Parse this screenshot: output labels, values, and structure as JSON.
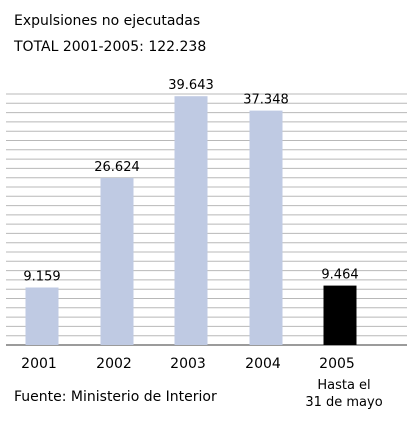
{
  "chart_data": {
    "type": "bar",
    "title": "Expulsiones no ejecutadas",
    "subtitle": "TOTAL 2001-2005: 122.238",
    "categories": [
      "2001",
      "2002",
      "2003",
      "2004",
      "2005"
    ],
    "category_notes": [
      "",
      "",
      "",
      "",
      "Hasta el 31 de mayo"
    ],
    "category_note_lines": [
      "Hasta el",
      "31 de mayo"
    ],
    "values": [
      9159,
      26624,
      39643,
      37348,
      9464
    ],
    "value_labels": [
      "9.159",
      "26.624",
      "39.643",
      "37.348",
      "9.464"
    ],
    "ylim": [
      0,
      40000
    ],
    "grid": true,
    "source": "Fuente: Ministerio de Interior",
    "colors": {
      "bar": "#bfcae3",
      "highlight_bar": "#000000",
      "grid": "#b8b8b8",
      "axis": "#7a7a7a"
    },
    "highlight_index": 4
  }
}
